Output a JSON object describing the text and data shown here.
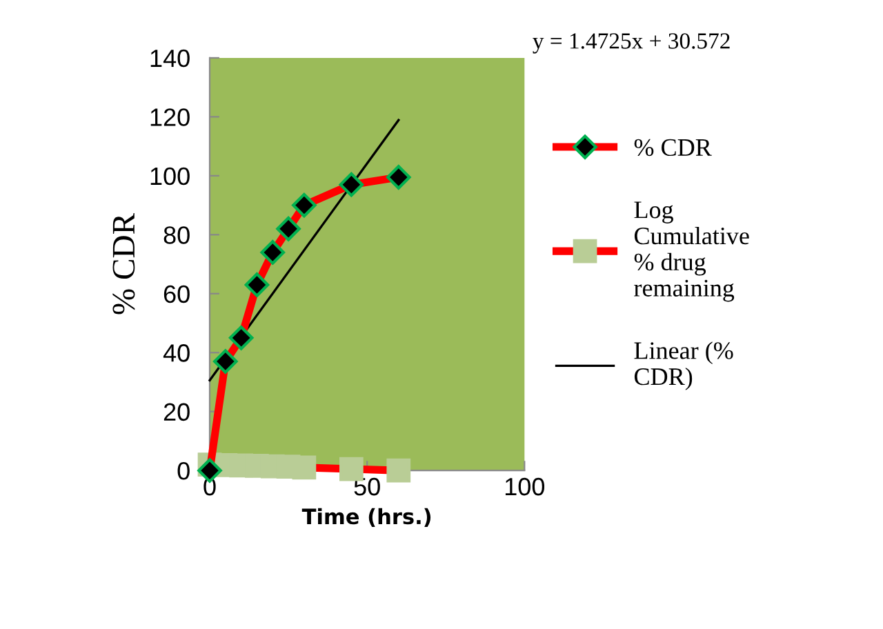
{
  "chart_data": {
    "type": "line",
    "xlabel": "Time (hrs.)",
    "ylabel": "% CDR",
    "xlim": [
      0,
      100
    ],
    "xticks": [
      0,
      50,
      100
    ],
    "ylim": [
      0,
      140
    ],
    "yticks": [
      0,
      20,
      40,
      60,
      80,
      100,
      120,
      140
    ],
    "grid": false,
    "legend": "right",
    "annotations": [
      "y = 1.4725x + 30.572"
    ],
    "series": [
      {
        "name": "% CDR",
        "color": "#ff0000",
        "marker": "diamond",
        "x": [
          0,
          5,
          10,
          15,
          20,
          25,
          30,
          45,
          60
        ],
        "values": [
          0,
          37,
          45,
          63,
          74,
          82,
          90,
          97,
          99.5
        ]
      },
      {
        "name": "Log\nCumulative\n% drug\nremaining",
        "color": "#ff0000",
        "marker": "square",
        "x": [
          0,
          5,
          10,
          15,
          20,
          25,
          30,
          45,
          60
        ],
        "values": [
          2,
          1.8,
          1.7,
          1.6,
          1.4,
          1.3,
          1.0,
          0.5,
          0
        ]
      },
      {
        "name": "Linear (%\nCDR)",
        "color": "#000000",
        "marker": "none",
        "x": [
          0,
          60
        ],
        "values": [
          30.6,
          118.9
        ]
      }
    ]
  }
}
